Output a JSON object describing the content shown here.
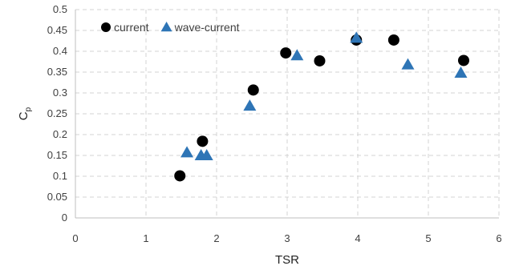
{
  "chart_data": {
    "type": "scatter",
    "xlabel": "TSR",
    "ylabel": "C",
    "ylabel_sub": "p",
    "xlim": [
      0,
      6
    ],
    "ylim": [
      0,
      0.5
    ],
    "x_ticks": [
      "0",
      "1",
      "2",
      "3",
      "4",
      "5",
      "6"
    ],
    "y_ticks": [
      "0",
      "0.05",
      "0.1",
      "0.15",
      "0.2",
      "0.25",
      "0.3",
      "0.35",
      "0.4",
      "0.45",
      "0.5"
    ],
    "grid": true,
    "legend_position": "top-left",
    "series": [
      {
        "name": "current",
        "marker": "circle",
        "color": "#000000",
        "points": [
          [
            1.48,
            0.101
          ],
          [
            1.8,
            0.184
          ],
          [
            2.52,
            0.307
          ],
          [
            2.98,
            0.396
          ],
          [
            3.46,
            0.377
          ],
          [
            3.98,
            0.427
          ],
          [
            4.51,
            0.427
          ],
          [
            5.5,
            0.378
          ]
        ]
      },
      {
        "name": "wave-current",
        "marker": "triangle",
        "color": "#2e75b6",
        "points": [
          [
            1.58,
            0.157
          ],
          [
            1.78,
            0.15
          ],
          [
            1.86,
            0.15
          ],
          [
            2.47,
            0.269
          ],
          [
            3.14,
            0.39
          ],
          [
            3.98,
            0.432
          ],
          [
            4.71,
            0.368
          ],
          [
            5.46,
            0.348
          ]
        ]
      }
    ]
  }
}
